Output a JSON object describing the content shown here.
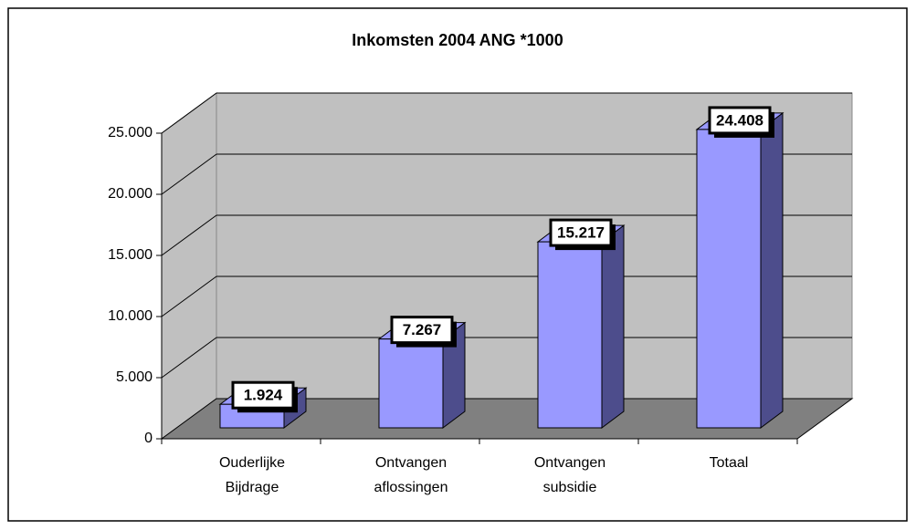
{
  "chart_data": {
    "type": "bar3d",
    "title": "Inkomsten 2004 ANG *1000",
    "categories": [
      [
        "Ouderlijke",
        "Bijdrage"
      ],
      [
        "Ontvangen",
        "aflossingen"
      ],
      [
        "Ontvangen",
        "subsidie"
      ],
      [
        "Totaal"
      ]
    ],
    "values": [
      1924,
      7267,
      15217,
      24408
    ],
    "value_labels": [
      "1.924",
      "7.267",
      "15.217",
      "24.408"
    ],
    "color": "#9999ff",
    "ylim": [
      0,
      25000
    ],
    "yticks": [
      0,
      {
        "value": 5000,
        "label": "5.000"
      },
      {
        "value": 10000,
        "label": "10.000"
      },
      {
        "value": 15000,
        "label": "15.000"
      },
      {
        "value": 20000,
        "label": "20.000"
      },
      {
        "value": 25000,
        "label": "25.000"
      }
    ],
    "grid": true
  }
}
